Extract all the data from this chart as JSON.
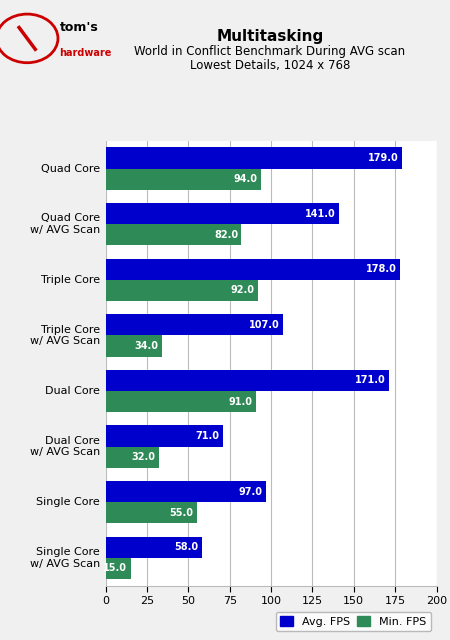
{
  "title": "Multitasking",
  "subtitle1": "World in Conflict Benchmark During AVG scan",
  "subtitle2": "Lowest Details, 1024 x 768",
  "categories": [
    "Quad Core",
    "Quad Core\nw/ AVG Scan",
    "Triple Core",
    "Triple Core\nw/ AVG Scan",
    "Dual Core",
    "Dual Core\nw/ AVG Scan",
    "Single Core",
    "Single Core\nw/ AVG Scan"
  ],
  "avg_fps": [
    179.0,
    141.0,
    178.0,
    107.0,
    171.0,
    71.0,
    97.0,
    58.0
  ],
  "min_fps": [
    94.0,
    82.0,
    92.0,
    34.0,
    91.0,
    32.0,
    55.0,
    15.0
  ],
  "avg_color": "#0000CC",
  "min_color": "#2E8B57",
  "bg_color": "#F0F0F0",
  "plot_bg": "#FFFFFF",
  "xlim": [
    0,
    200
  ],
  "xticks": [
    0,
    25,
    50,
    75,
    100,
    125,
    150,
    175,
    200
  ],
  "bar_height": 0.38,
  "title_fontsize": 11,
  "subtitle_fontsize": 8.5,
  "label_fontsize": 8,
  "tick_fontsize": 8,
  "legend_labels": [
    "Avg. FPS",
    "Min. FPS"
  ]
}
